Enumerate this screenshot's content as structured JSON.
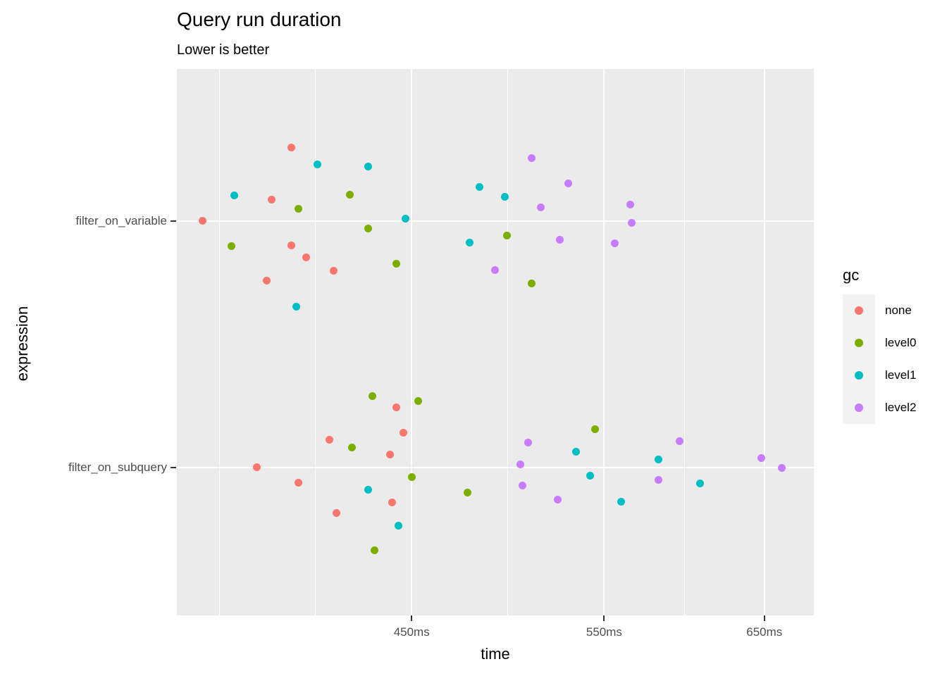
{
  "chart_data": {
    "type": "scatter",
    "title": "Query run duration",
    "subtitle": "Lower is better",
    "xlabel": "time",
    "ylabel": "expression",
    "x_scale": {
      "type": "log10",
      "unit": "ms",
      "domain": [
        352.3,
        684.4
      ],
      "ticks": [
        {
          "label": "450ms",
          "t": 450
        },
        {
          "label": "550ms",
          "t": 550
        },
        {
          "label": "650ms",
          "t": 650
        }
      ],
      "minor_gridlines_t": [
        368.2,
        407.1,
        497.5,
        597.9
      ],
      "grid": "on"
    },
    "y_categories": [
      {
        "label": "filter_on_variable"
      },
      {
        "label": "filter_on_subquery"
      }
    ],
    "legend": {
      "title": "gc",
      "position": "right",
      "entries": [
        {
          "label": "none",
          "color": "#F8766D"
        },
        {
          "label": "level0",
          "color": "#7CAE00"
        },
        {
          "label": "level1",
          "color": "#00BFC4"
        },
        {
          "label": "level2",
          "color": "#C77CFF"
        }
      ]
    },
    "series": [
      {
        "name": "none",
        "color": "#F8766D",
        "points": [
          {
            "row": 0,
            "t": 397,
            "j": -104
          },
          {
            "row": 0,
            "t": 389,
            "j": -30
          },
          {
            "row": 0,
            "t": 362,
            "j": 0
          },
          {
            "row": 0,
            "t": 397,
            "j": 35
          },
          {
            "row": 0,
            "t": 403,
            "j": 52
          },
          {
            "row": 0,
            "t": 415,
            "j": 71
          },
          {
            "row": 0,
            "t": 387,
            "j": 85
          },
          {
            "row": 1,
            "t": 443,
            "j": -85
          },
          {
            "row": 1,
            "t": 446,
            "j": -49
          },
          {
            "row": 1,
            "t": 413,
            "j": -39
          },
          {
            "row": 1,
            "t": 440,
            "j": -18
          },
          {
            "row": 1,
            "t": 383,
            "j": 0
          },
          {
            "row": 1,
            "t": 400,
            "j": 22
          },
          {
            "row": 1,
            "t": 441,
            "j": 50
          },
          {
            "row": 1,
            "t": 416,
            "j": 65
          }
        ]
      },
      {
        "name": "level0",
        "color": "#7CAE00",
        "points": [
          {
            "row": 0,
            "t": 422,
            "j": -37
          },
          {
            "row": 0,
            "t": 400,
            "j": -17
          },
          {
            "row": 0,
            "t": 430,
            "j": 11
          },
          {
            "row": 0,
            "t": 373,
            "j": 36
          },
          {
            "row": 0,
            "t": 443,
            "j": 61
          },
          {
            "row": 0,
            "t": 497,
            "j": 21
          },
          {
            "row": 0,
            "t": 510,
            "j": 89
          },
          {
            "row": 1,
            "t": 432,
            "j": -101
          },
          {
            "row": 1,
            "t": 453,
            "j": -94
          },
          {
            "row": 1,
            "t": 423,
            "j": -28
          },
          {
            "row": 1,
            "t": 450,
            "j": 14
          },
          {
            "row": 1,
            "t": 477,
            "j": 36
          },
          {
            "row": 1,
            "t": 433,
            "j": 118
          },
          {
            "row": 1,
            "t": 545,
            "j": -54
          }
        ]
      },
      {
        "name": "level1",
        "color": "#00BFC4",
        "points": [
          {
            "row": 0,
            "t": 408,
            "j": -80
          },
          {
            "row": 0,
            "t": 430,
            "j": -77
          },
          {
            "row": 0,
            "t": 374,
            "j": -36
          },
          {
            "row": 0,
            "t": 447,
            "j": -3
          },
          {
            "row": 0,
            "t": 399,
            "j": 122
          },
          {
            "row": 0,
            "t": 483,
            "j": -48
          },
          {
            "row": 0,
            "t": 496,
            "j": -34
          },
          {
            "row": 0,
            "t": 478,
            "j": 31
          },
          {
            "row": 1,
            "t": 430,
            "j": 32
          },
          {
            "row": 1,
            "t": 444,
            "j": 83
          },
          {
            "row": 1,
            "t": 534,
            "j": -22
          },
          {
            "row": 1,
            "t": 582,
            "j": -11
          },
          {
            "row": 1,
            "t": 542,
            "j": 12
          },
          {
            "row": 1,
            "t": 608,
            "j": 23
          },
          {
            "row": 1,
            "t": 560,
            "j": 49
          }
        ]
      },
      {
        "name": "level2",
        "color": "#C77CFF",
        "points": [
          {
            "row": 0,
            "t": 510,
            "j": -89
          },
          {
            "row": 0,
            "t": 530,
            "j": -53
          },
          {
            "row": 0,
            "t": 515,
            "j": -19
          },
          {
            "row": 0,
            "t": 565,
            "j": -23
          },
          {
            "row": 0,
            "t": 566,
            "j": 3
          },
          {
            "row": 0,
            "t": 525,
            "j": 27
          },
          {
            "row": 0,
            "t": 556,
            "j": 32
          },
          {
            "row": 0,
            "t": 491,
            "j": 70
          },
          {
            "row": 1,
            "t": 508,
            "j": -35
          },
          {
            "row": 1,
            "t": 595,
            "j": -37
          },
          {
            "row": 1,
            "t": 648,
            "j": -13
          },
          {
            "row": 1,
            "t": 504,
            "j": -4
          },
          {
            "row": 1,
            "t": 662,
            "j": 1
          },
          {
            "row": 1,
            "t": 505,
            "j": 26
          },
          {
            "row": 1,
            "t": 582,
            "j": 18
          },
          {
            "row": 1,
            "t": 524,
            "j": 46
          }
        ]
      }
    ],
    "colors": {
      "panel_background": "#EBEBEB",
      "gridline": "#FFFFFF",
      "tick_mark": "#333333",
      "tick_label": "#4D4D4D",
      "legend_key_background": "#F2F2F2"
    }
  }
}
